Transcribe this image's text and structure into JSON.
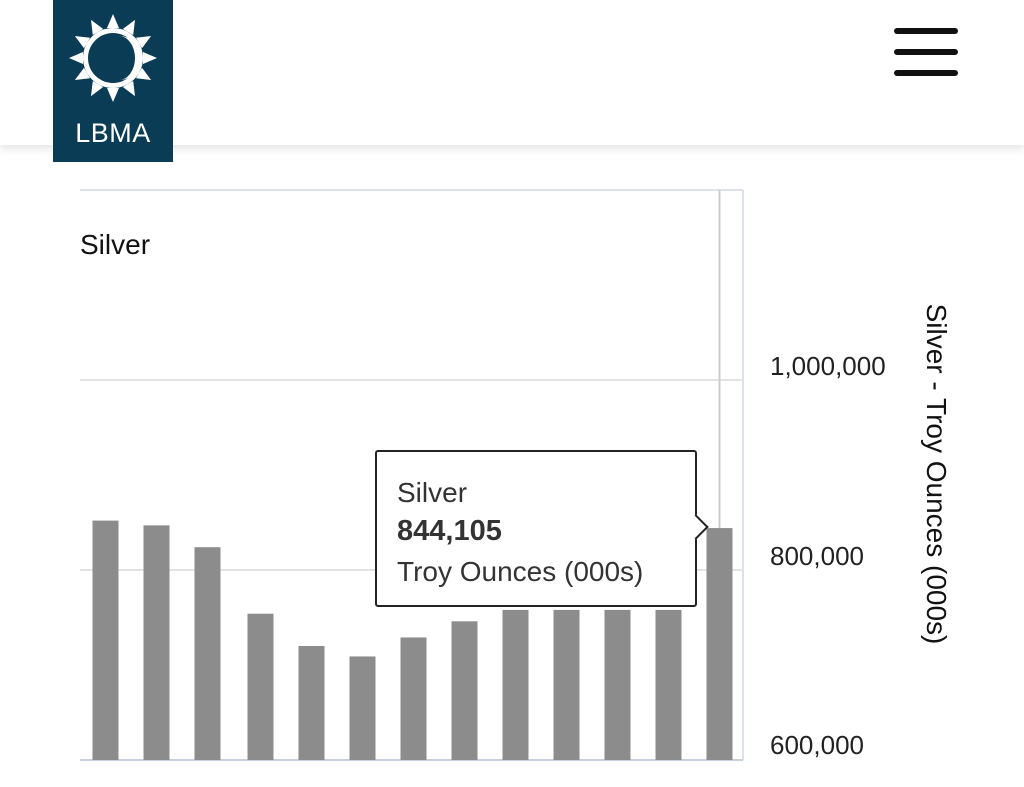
{
  "header": {
    "logo_text": "LBMA",
    "menu_icon": "hamburger-menu-icon",
    "brand_color": "#0b3c55"
  },
  "chart_data": {
    "type": "bar",
    "title": "Silver",
    "ylabel": "Silver - Troy Ounces (000s)",
    "ylim": [
      600000,
      1000000
    ],
    "yticks": [
      600000,
      800000,
      1000000
    ],
    "ytick_labels": [
      "600,000",
      "800,000",
      "1,000,000"
    ],
    "y_axis_position": "right",
    "grid": true,
    "bar_color": "#8c8c8c",
    "series": [
      {
        "values": [
          852000,
          847000,
          824000,
          754000,
          720000,
          709000,
          729000,
          746000,
          758000,
          758000,
          758000,
          758000,
          844105
        ]
      }
    ],
    "tooltip": {
      "series": "Silver",
      "value": "844,105",
      "unit": "Troy Ounces (000s)",
      "index": 12
    }
  }
}
